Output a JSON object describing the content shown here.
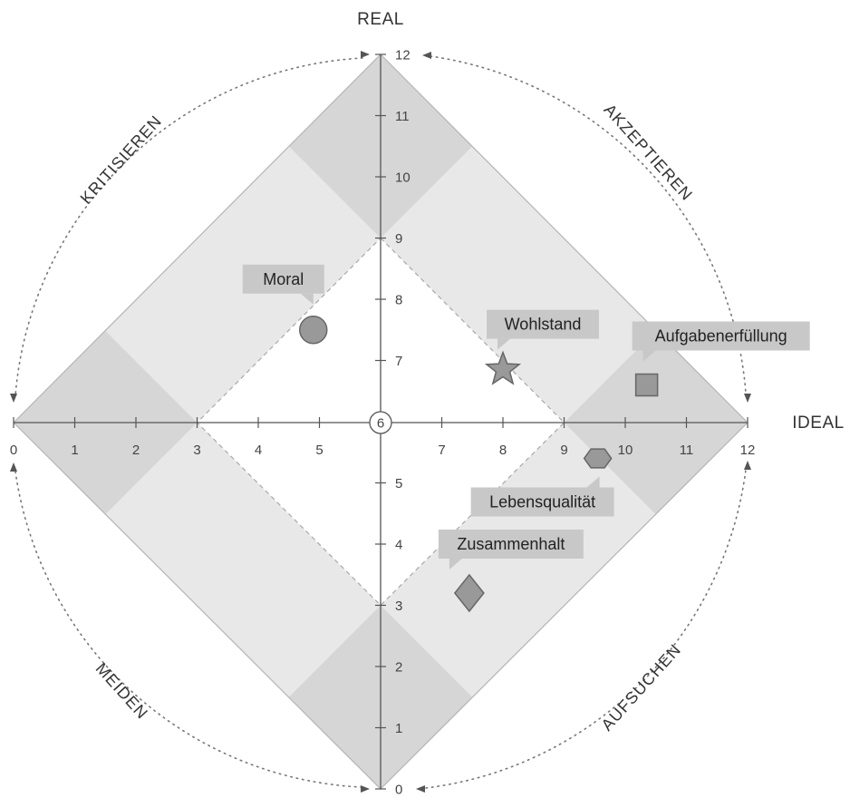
{
  "chart_data": {
    "type": "scatter",
    "xlabel": "IDEAL",
    "ylabel": "REAL",
    "xlim": [
      0,
      12
    ],
    "ylim": [
      0,
      12
    ],
    "x_ticks": [
      "0",
      "1",
      "2",
      "3",
      "4",
      "5",
      "6",
      "7",
      "8",
      "9",
      "10",
      "11",
      "12"
    ],
    "y_ticks": [
      "0",
      "1",
      "2",
      "3",
      "4",
      "5",
      "6",
      "7",
      "8",
      "9",
      "10",
      "11",
      "12"
    ],
    "center_label": "6",
    "quadrant_labels": {
      "top_left": "KRITISIEREN",
      "top_right": "AKZEPTIEREN",
      "bottom_left": "MEIDEN",
      "bottom_right": "AUFSUCHEN"
    },
    "points": [
      {
        "label": "Moral",
        "x": 4.9,
        "y": 7.5,
        "marker": "circle"
      },
      {
        "label": "Wohlstand",
        "x": 8.0,
        "y": 6.85,
        "marker": "star"
      },
      {
        "label": "Aufgabenerfüllung",
        "x": 10.35,
        "y": 6.6,
        "marker": "square"
      },
      {
        "label": "Lebensqualität",
        "x": 9.55,
        "y": 5.4,
        "marker": "hexagon"
      },
      {
        "label": "Zusammenhalt",
        "x": 7.45,
        "y": 3.2,
        "marker": "diamond"
      }
    ],
    "colors": {
      "band_light": "#e8e8e8",
      "band_dark": "#d6d6d6",
      "marker_fill": "#999999",
      "marker_stroke": "#666666",
      "label_bg": "#c8c8c8"
    }
  }
}
